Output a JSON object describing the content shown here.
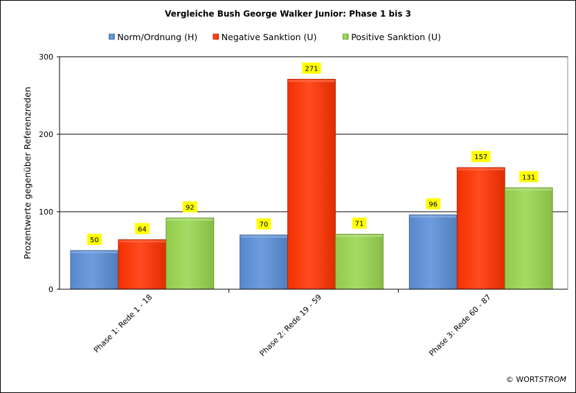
{
  "chart_data": {
    "type": "bar",
    "title": "Vergleiche Bush George Walker Junior: Phase 1 bis 3",
    "ylabel": "Prozentwerte  gegenüber Referenzreden",
    "xlabel": "",
    "categories": [
      "Phase 1: Rede 1 - 18",
      "Phase 2: Rede 19 - 59",
      "Phase 3: Rede 60 - 87"
    ],
    "series": [
      {
        "name": "Norm/Ordnung (H)",
        "values": [
          50,
          70,
          96
        ],
        "color": "#5b8fd8"
      },
      {
        "name": "Negative Sanktion (U)",
        "values": [
          64,
          271,
          157
        ],
        "color": "#ff3300"
      },
      {
        "name": "Positive Sanktion (U)",
        "values": [
          92,
          71,
          131
        ],
        "color": "#99d64f"
      }
    ],
    "ylim": [
      0,
      300
    ],
    "yticks": [
      0,
      100,
      200,
      300
    ],
    "grid": true,
    "legend_position": "top",
    "data_labels": true,
    "data_label_background": "#ffff00"
  },
  "footer": {
    "copyright_symbol": "©",
    "brand_normal": "WORT",
    "brand_italic": "STROM"
  }
}
